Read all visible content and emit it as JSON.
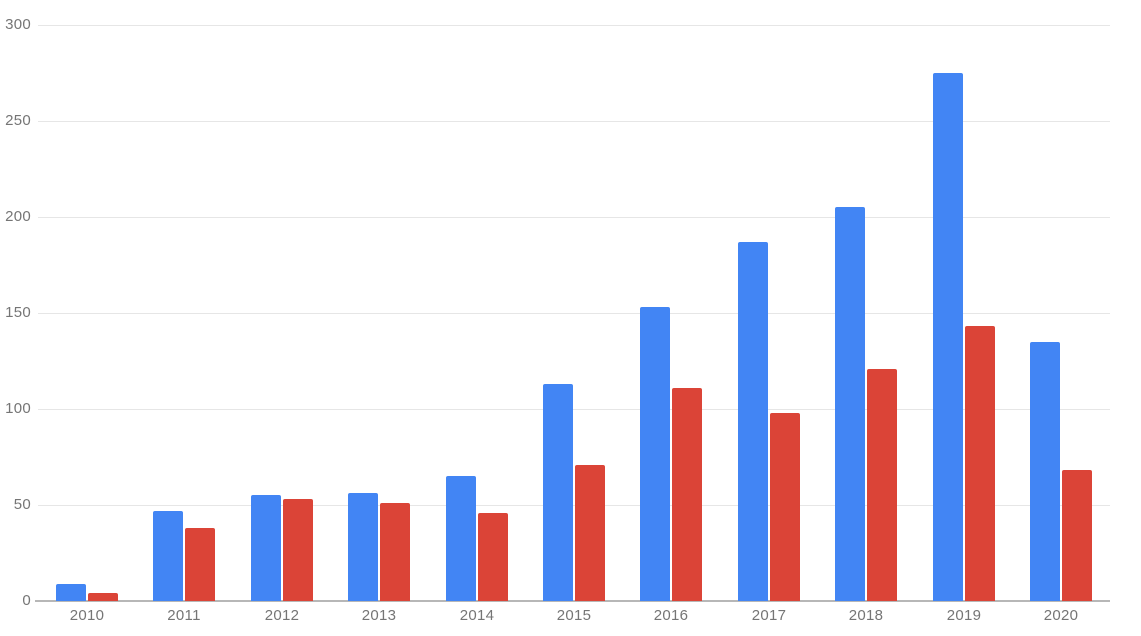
{
  "chart_data": {
    "type": "bar",
    "title": "",
    "xlabel": "",
    "ylabel": "",
    "categories": [
      "2010",
      "2011",
      "2012",
      "2013",
      "2014",
      "2015",
      "2016",
      "2017",
      "2018",
      "2019",
      "2020"
    ],
    "series": [
      {
        "name": "blue-series",
        "color": "#4285F4",
        "values": [
          9,
          47,
          55,
          56,
          65,
          113,
          153,
          187,
          205,
          275,
          135
        ]
      },
      {
        "name": "red-series",
        "color": "#DB4437",
        "values": [
          4,
          38,
          53,
          51,
          46,
          71,
          111,
          98,
          121,
          143,
          68
        ]
      }
    ],
    "ylim": [
      0,
      300
    ],
    "yticks": [
      0,
      50,
      100,
      150,
      200,
      250,
      300
    ],
    "grid": true,
    "legend": "none",
    "colors": {
      "grid": "#E6E6E6",
      "baseline": "#B7B7B7",
      "tick_label": "#757575",
      "background": "#FFFFFF"
    }
  }
}
